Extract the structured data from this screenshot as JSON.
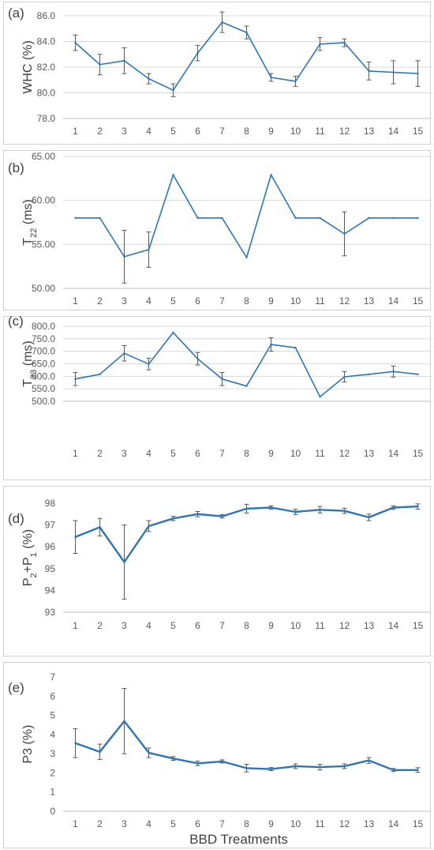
{
  "colors": {
    "line": "#2e75b6",
    "grid": "#d9d9d9",
    "error": "#595959",
    "text": "#595959",
    "border": "#d0d0d0"
  },
  "chart_data": [
    {
      "type": "line",
      "panel_label": "(a)",
      "ylabel": "WHC (%)",
      "ylabel_main": "WHC (%)",
      "ylabel_sub": "",
      "ylabel_tail": "",
      "xlabel": "",
      "categories": [
        "1",
        "2",
        "3",
        "4",
        "5",
        "6",
        "7",
        "8",
        "9",
        "10",
        "11",
        "12",
        "13",
        "14",
        "15"
      ],
      "ylim": [
        78.0,
        86.0
      ],
      "yticks": [
        "78.0",
        "80.0",
        "82.0",
        "84.0",
        "86.0"
      ],
      "grid": true,
      "series": [
        {
          "values": [
            83.9,
            82.2,
            82.5,
            81.1,
            80.2,
            83.1,
            85.5,
            84.7,
            81.2,
            80.9,
            83.8,
            83.9,
            81.7,
            81.6,
            81.5
          ]
        }
      ],
      "errors": [
        0.6,
        0.8,
        1.0,
        0.4,
        0.5,
        0.6,
        0.8,
        0.5,
        0.3,
        0.4,
        0.5,
        0.3,
        0.7,
        0.9,
        1.0
      ]
    },
    {
      "type": "line",
      "panel_label": "(b)",
      "ylabel": "T22 (ms)",
      "ylabel_main": "T",
      "ylabel_sub": "22",
      "ylabel_tail": " (ms)",
      "xlabel": "",
      "categories": [
        "1",
        "2",
        "3",
        "4",
        "5",
        "6",
        "7",
        "8",
        "9",
        "10",
        "11",
        "12",
        "13",
        "14",
        "15"
      ],
      "ylim": [
        50.0,
        65.0
      ],
      "yticks": [
        "50.00",
        "55.00",
        "60.00",
        "65.00"
      ],
      "grid": true,
      "series": [
        {
          "values": [
            58.0,
            58.0,
            53.6,
            54.4,
            62.9,
            58.0,
            58.0,
            53.5,
            62.9,
            58.0,
            58.0,
            56.2,
            58.0,
            58.0,
            58.0
          ]
        }
      ],
      "errors": [
        0,
        0,
        3.0,
        2.0,
        0,
        0,
        0,
        0,
        0,
        0,
        0,
        2.5,
        0,
        0,
        0
      ]
    },
    {
      "type": "line",
      "panel_label": "(c)",
      "ylabel": "T23 (ms)",
      "ylabel_main": "T",
      "ylabel_sub": "23",
      "ylabel_tail": " (ms)",
      "xlabel": "",
      "categories": [
        "1",
        "2",
        "3",
        "4",
        "5",
        "6",
        "7",
        "8",
        "9",
        "10",
        "11",
        "12",
        "13",
        "14",
        "15"
      ],
      "ylim": [
        500.0,
        800.0
      ],
      "yticks": [
        "500.0",
        "550.0",
        "600.0",
        "650.0",
        "700.0",
        "750.0",
        "800.0"
      ],
      "grid": true,
      "series": [
        {
          "values": [
            589,
            608,
            692,
            649,
            775,
            670,
            589,
            561,
            727,
            714,
            518,
            598,
            608,
            619,
            608
          ]
        }
      ],
      "errors": [
        26,
        0,
        31,
        23,
        0,
        25,
        26,
        0,
        27,
        0,
        0,
        21,
        0,
        22,
        0
      ]
    },
    {
      "type": "line",
      "panel_label": "(d)",
      "ylabel": "P2+P1 (%)",
      "ylabel_main": "P",
      "ylabel_sub": "2",
      "ylabel_tail": "+P",
      "ylabel_sub2": "1",
      "ylabel_tail2": " (%)",
      "xlabel": "",
      "categories": [
        "1",
        "2",
        "3",
        "4",
        "5",
        "6",
        "7",
        "8",
        "9",
        "10",
        "11",
        "12",
        "13",
        "14",
        "15"
      ],
      "ylim": [
        93,
        98
      ],
      "yticks": [
        "93",
        "94",
        "95",
        "96",
        "97",
        "98"
      ],
      "grid": false,
      "series": [
        {
          "values": [
            96.45,
            96.9,
            95.3,
            96.95,
            97.3,
            97.5,
            97.4,
            97.75,
            97.8,
            97.6,
            97.7,
            97.65,
            97.35,
            97.8,
            97.85
          ]
        }
      ],
      "errors": [
        0.75,
        0.4,
        1.7,
        0.25,
        0.1,
        0.12,
        0.08,
        0.2,
        0.08,
        0.12,
        0.15,
        0.12,
        0.15,
        0.08,
        0.12
      ]
    },
    {
      "type": "line",
      "panel_label": "(e)",
      "ylabel": "P3 (%)",
      "ylabel_main": "P3 (%)",
      "ylabel_sub": "",
      "ylabel_tail": "",
      "xlabel": "BBD Treatments",
      "categories": [
        "1",
        "2",
        "3",
        "4",
        "5",
        "6",
        "7",
        "8",
        "9",
        "10",
        "11",
        "12",
        "13",
        "14",
        "15"
      ],
      "ylim": [
        0,
        7
      ],
      "yticks": [
        "0",
        "1",
        "2",
        "3",
        "4",
        "5",
        "6",
        "7"
      ],
      "grid": false,
      "series": [
        {
          "values": [
            3.55,
            3.1,
            4.7,
            3.05,
            2.75,
            2.5,
            2.6,
            2.25,
            2.2,
            2.35,
            2.3,
            2.35,
            2.65,
            2.15,
            2.15
          ]
        }
      ],
      "errors": [
        0.75,
        0.4,
        1.7,
        0.25,
        0.1,
        0.12,
        0.08,
        0.2,
        0.08,
        0.12,
        0.15,
        0.12,
        0.15,
        0.08,
        0.12
      ]
    }
  ]
}
